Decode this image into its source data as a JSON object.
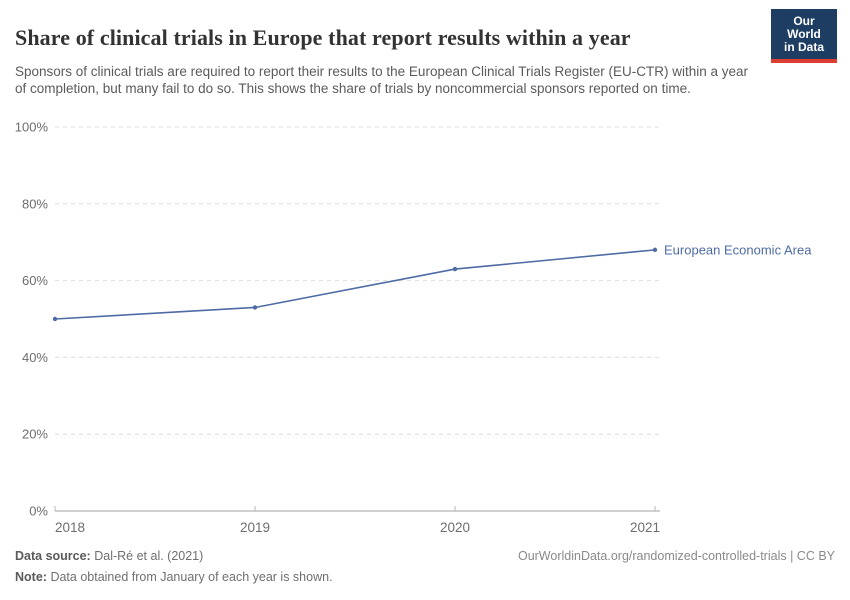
{
  "header": {
    "title": "Share of clinical trials in Europe that report results within a year",
    "subtitle": "Sponsors of clinical trials are required to report their results to the European Clinical Trials Register (EU-CTR) within a year of completion, but many fail to do so. This shows the share of trials by noncommercial sponsors reported on time.",
    "logo": {
      "line1": "Our World",
      "line2": "in Data",
      "bg_color": "#1d3d63",
      "accent_color": "#dc3e32"
    }
  },
  "chart_data": {
    "type": "line",
    "x": [
      "2018",
      "2019",
      "2020",
      "2021"
    ],
    "series": [
      {
        "name": "European Economic Area",
        "color": "#4d6ba5",
        "values": [
          50,
          53,
          63,
          68
        ]
      }
    ],
    "ylim": [
      0,
      100
    ],
    "yticks": [
      0,
      20,
      40,
      60,
      80,
      100
    ],
    "ytick_suffix": "%",
    "grid": "horizontal-dashed",
    "legend_position": "end-of-line-label",
    "colors": {
      "gridline": "#dedede",
      "axis_line": "#a3a3a3",
      "tick_mark": "#b8b8b8",
      "tick_label": "#6e6e6e"
    }
  },
  "footer": {
    "datasource_label": "Data source:",
    "datasource_value": "Dal-Ré et al. (2021)",
    "note_label": "Note:",
    "note_value": "Data obtained from January of each year is shown.",
    "url_license": "OurWorldinData.org/randomized-controlled-trials | CC BY"
  }
}
